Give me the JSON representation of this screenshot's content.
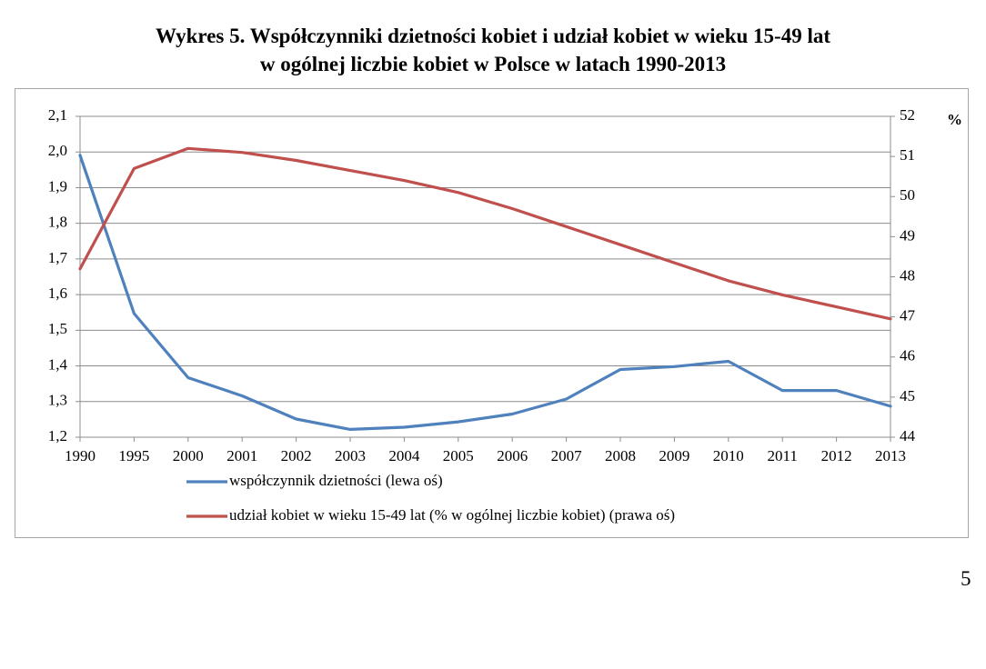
{
  "header": {
    "title_line1": "Wykres 5. Współczynniki dzietności kobiet i udział kobiet w wieku 15-49 lat",
    "title_line2": "w ogólnej liczbie kobiet w Polsce w latach 1990-2013"
  },
  "footer": {
    "page_number": "5"
  },
  "chart_data": {
    "type": "line",
    "title": "Wykres 5. Współczynniki dzietności kobiet i udział kobiet w wieku 15-49 lat w ogólnej liczbie kobiet w Polsce w latach 1990-2013",
    "categories": [
      "1990",
      "1995",
      "2000",
      "2001",
      "2002",
      "2003",
      "2004",
      "2005",
      "2006",
      "2007",
      "2008",
      "2009",
      "2010",
      "2011",
      "2012",
      "2013"
    ],
    "y_left": {
      "min": 1.2,
      "max": 2.1,
      "ticks": [
        "2,1",
        "2,0",
        "1,9",
        "1,8",
        "1,7",
        "1,6",
        "1,5",
        "1,4",
        "1,3",
        "1,2"
      ]
    },
    "y_right": {
      "min": 44,
      "max": 52,
      "unit": "%",
      "ticks": [
        "52",
        "51",
        "50",
        "49",
        "48",
        "47",
        "46",
        "45",
        "44"
      ]
    },
    "grid": "horizontal",
    "legend_position": "bottom",
    "series": [
      {
        "name": "współczynnik dzietności (lewa oś)",
        "axis": "left",
        "color": "#4f81bd",
        "values": [
          1.991,
          1.547,
          1.367,
          1.316,
          1.251,
          1.222,
          1.228,
          1.243,
          1.265,
          1.307,
          1.39,
          1.398,
          1.413,
          1.331,
          1.331,
          1.287
        ]
      },
      {
        "name": "udział kobiet w wieku 15-49 lat (% w ogólnej liczbie kobiet) (prawa oś)",
        "axis": "right",
        "color": "#c0504d",
        "values": [
          48.2,
          50.7,
          51.2,
          51.1,
          50.9,
          50.65,
          50.4,
          50.1,
          49.7,
          49.25,
          48.8,
          48.35,
          47.9,
          47.55,
          47.25,
          46.95
        ]
      }
    ]
  }
}
